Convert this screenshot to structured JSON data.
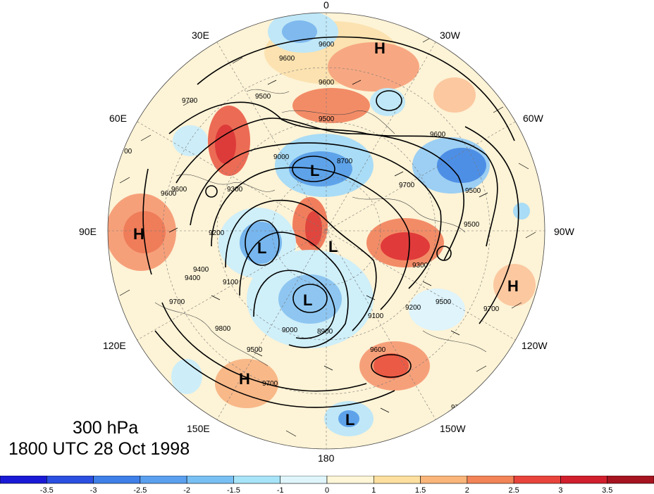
{
  "title": {
    "level": "300 hPa",
    "valid_time": "1800 UTC 28 Oct 1998"
  },
  "meridian_labels": [
    "0",
    "30W",
    "60W",
    "90W",
    "120W",
    "150W",
    "180",
    "150E",
    "120E",
    "90E",
    "60E",
    "30E"
  ],
  "contour_labels": [
    "9600",
    "9600",
    "9500",
    "9600",
    "9500",
    "9700",
    "9700",
    "9600",
    "9700",
    "9600",
    "9300",
    "9000",
    "8700",
    "9500",
    "9200",
    "9100",
    "9400",
    "9200",
    "9100",
    "9000",
    "8900",
    "9300",
    "9500",
    "9700",
    "9800",
    "9700",
    "9700",
    "9600",
    "9500",
    "9400",
    "9600",
    "9700",
    "9500"
  ],
  "centers": [
    {
      "letter": "H"
    },
    {
      "letter": "L"
    },
    {
      "letter": "L"
    },
    {
      "letter": "L"
    },
    {
      "letter": "L"
    },
    {
      "letter": "H"
    },
    {
      "letter": "H"
    },
    {
      "letter": "H"
    },
    {
      "letter": "L"
    }
  ],
  "colorbar": {
    "ticks": [
      "-3.5",
      "-3",
      "-2.5",
      "-2",
      "-1.5",
      "-1",
      "0",
      "1",
      "1.5",
      "2",
      "2.5",
      "3",
      "3.5"
    ],
    "colors": [
      "#1a1ad6",
      "#2b4fe0",
      "#3f7fe8",
      "#5aa0ef",
      "#78c0f3",
      "#a8e4f8",
      "#dff5fb",
      "#fff6d8",
      "#fde0a0",
      "#f9b57a",
      "#f28458",
      "#e8443c",
      "#d11f2d",
      "#a5141f"
    ]
  }
}
